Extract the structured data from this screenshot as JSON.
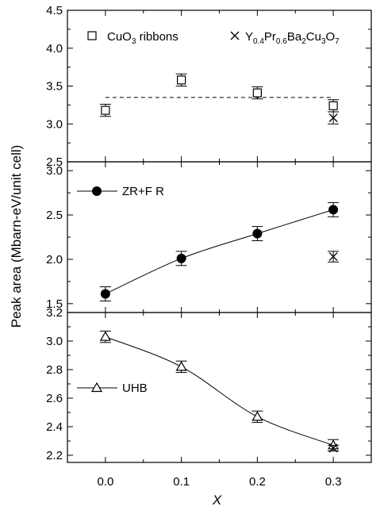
{
  "chart_data": {
    "type": "scatter",
    "xlabel": "X",
    "ylabel": "Peak area (Mbarn-eV/unit cell)",
    "xlim": [
      -0.05,
      0.35
    ],
    "x_ticks": [
      "0.0",
      "0.1",
      "0.2",
      "0.3"
    ],
    "panels": [
      {
        "ylim": [
          2.5,
          4.5
        ],
        "y_ticks": [
          "2.5",
          "3.0",
          "3.5",
          "4.0",
          "4.5"
        ],
        "legend": [
          {
            "marker": "open-square",
            "label_main": "CuO",
            "label_sub": "3",
            "label_tail": " ribbons"
          },
          {
            "marker": "cross",
            "label_parts": [
              [
                "Y",
                ""
              ],
              [
                "0.4",
                "sub"
              ],
              [
                "Pr",
                ""
              ],
              [
                "0.6",
                "sub"
              ],
              [
                "Ba",
                ""
              ],
              [
                "2",
                "sub"
              ],
              [
                "Cu",
                ""
              ],
              [
                "3",
                "sub"
              ],
              [
                "O",
                ""
              ],
              [
                "7",
                "sub"
              ]
            ]
          }
        ],
        "series": [
          {
            "marker": "open-square",
            "x": [
              0.0,
              0.1,
              0.2,
              0.3
            ],
            "y": [
              3.18,
              3.58,
              3.41,
              3.24
            ],
            "err": [
              0.08,
              0.08,
              0.08,
              0.08
            ]
          },
          {
            "marker": "cross",
            "x": [
              0.3
            ],
            "y": [
              3.08
            ],
            "err": [
              0.08
            ]
          }
        ],
        "reference_line": {
          "y": 3.35,
          "x": [
            0.0,
            0.3
          ],
          "style": "dashed"
        }
      },
      {
        "ylim": [
          1.4,
          3.1
        ],
        "y_ticks": [
          "1.5",
          "2.0",
          "2.5",
          "3.0"
        ],
        "legend": [
          {
            "marker": "filled-circle",
            "label": "ZR+F R"
          }
        ],
        "series": [
          {
            "marker": "filled-circle",
            "x": [
              0.0,
              0.1,
              0.2,
              0.3
            ],
            "y": [
              1.61,
              2.01,
              2.29,
              2.56
            ],
            "err": [
              0.08,
              0.08,
              0.08,
              0.08
            ],
            "line": true
          },
          {
            "marker": "cross",
            "x": [
              0.3
            ],
            "y": [
              2.03
            ],
            "err": [
              0.06
            ]
          }
        ]
      },
      {
        "ylim": [
          2.15,
          3.2
        ],
        "y_ticks": [
          "2.2",
          "2.4",
          "2.6",
          "2.8",
          "3.0",
          "3.2"
        ],
        "legend": [
          {
            "marker": "open-triangle",
            "label": "UHB"
          }
        ],
        "series": [
          {
            "marker": "open-triangle",
            "x": [
              0.0,
              0.1,
              0.2,
              0.3
            ],
            "y": [
              3.03,
              2.82,
              2.47,
              2.27
            ],
            "err": [
              0.04,
              0.04,
              0.04,
              0.04
            ],
            "line": true
          },
          {
            "marker": "cross",
            "x": [
              0.3
            ],
            "y": [
              2.25
            ],
            "err": [
              0.02
            ]
          }
        ]
      }
    ]
  }
}
